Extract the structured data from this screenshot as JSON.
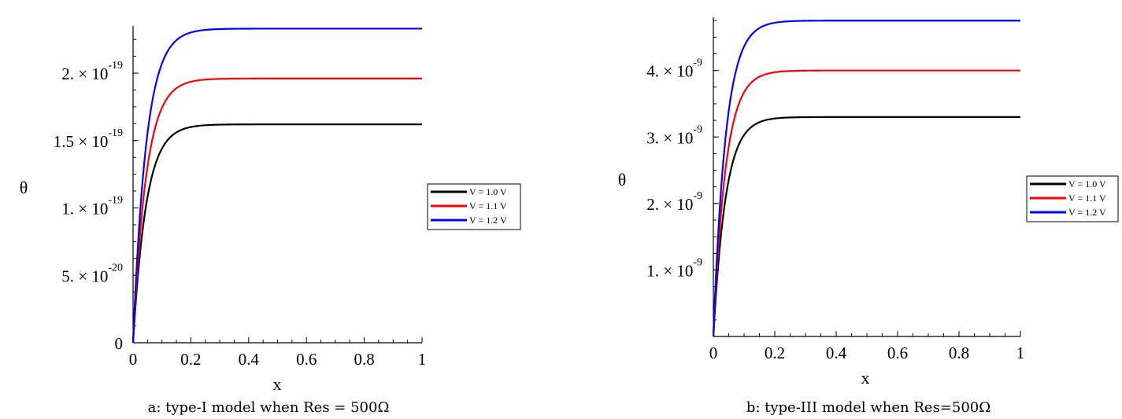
{
  "chart_data": [
    {
      "type": "line",
      "caption": "a: type-I model when Res = 500Ω",
      "xlabel": "x",
      "ylabel": "θ",
      "xlim": [
        0,
        1
      ],
      "ylim": [
        0,
        2.35e-19
      ],
      "x_ticks": [
        {
          "value": 0,
          "label": "0"
        },
        {
          "value": 0.2,
          "label": "0.2"
        },
        {
          "value": 0.4,
          "label": "0.4"
        },
        {
          "value": 0.6,
          "label": "0.6"
        },
        {
          "value": 0.8,
          "label": "0.8"
        },
        {
          "value": 1,
          "label": "1"
        }
      ],
      "y_ticks": [
        {
          "value": 0,
          "mant": "0",
          "exp": ""
        },
        {
          "value": 5e-20,
          "mant": "5. × 10",
          "exp": "-20"
        },
        {
          "value": 1e-19,
          "mant": "1. × 10",
          "exp": "-19"
        },
        {
          "value": 1.5e-19,
          "mant": "1.5 × 10",
          "exp": "-19"
        },
        {
          "value": 2e-19,
          "mant": "2. × 10",
          "exp": "-19"
        }
      ],
      "legend": {
        "placement": "right"
      },
      "series": [
        {
          "name": "V = 1.0 V",
          "color": "#000000",
          "plateau": 1.62e-19,
          "rate": 22
        },
        {
          "name": "V = 1.1 V",
          "color": "#ff0000",
          "plateau": 1.96e-19,
          "rate": 22
        },
        {
          "name": "V = 1.2 V",
          "color": "#0000ff",
          "plateau": 2.33e-19,
          "rate": 22
        }
      ]
    },
    {
      "type": "line",
      "caption": "b: type-III model when Res=500Ω",
      "xlabel": "x",
      "ylabel": "θ",
      "xlim": [
        0,
        1
      ],
      "ylim": [
        0,
        4.8e-09
      ],
      "x_ticks": [
        {
          "value": 0,
          "label": "0"
        },
        {
          "value": 0.2,
          "label": "0.2"
        },
        {
          "value": 0.4,
          "label": "0.4"
        },
        {
          "value": 0.6,
          "label": "0.6"
        },
        {
          "value": 0.8,
          "label": "0.8"
        },
        {
          "value": 1,
          "label": "1"
        }
      ],
      "y_ticks": [
        {
          "value": 1e-09,
          "mant": "1. × 10",
          "exp": "-9"
        },
        {
          "value": 2e-09,
          "mant": "2. × 10",
          "exp": "-9"
        },
        {
          "value": 3e-09,
          "mant": "3. × 10",
          "exp": "-9"
        },
        {
          "value": 4e-09,
          "mant": "4. × 10",
          "exp": "-9"
        }
      ],
      "legend": {
        "placement": "right"
      },
      "series": [
        {
          "name": "V = 1.0 V",
          "color": "#000000",
          "plateau": 3.3e-09,
          "rate": 25
        },
        {
          "name": "V = 1.1 V",
          "color": "#ff0000",
          "plateau": 4e-09,
          "rate": 25
        },
        {
          "name": "V = 1.2 V",
          "color": "#0000ff",
          "plateau": 4.75e-09,
          "rate": 25
        }
      ]
    }
  ]
}
